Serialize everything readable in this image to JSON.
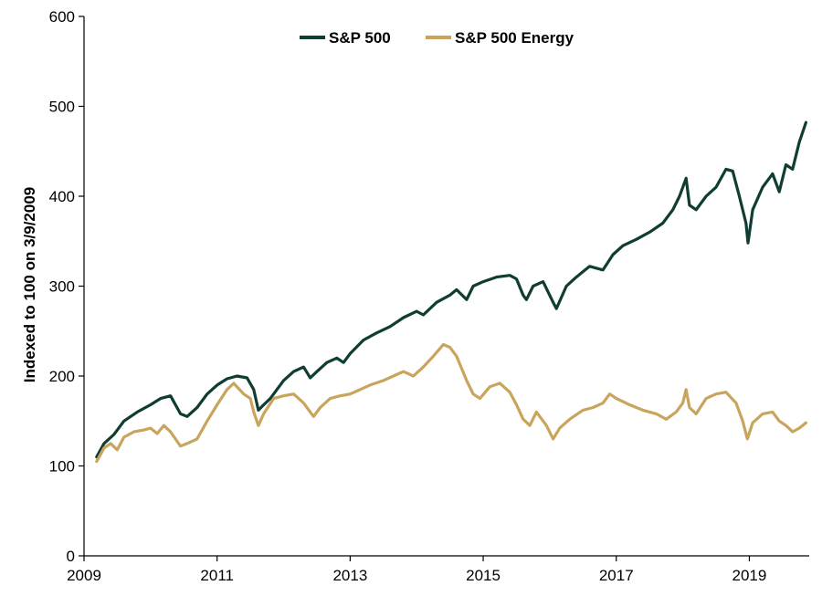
{
  "chart_data": {
    "type": "line",
    "title": "",
    "xlabel": "",
    "ylabel": "Indexed to 100 on 3/9/2009",
    "xlim": [
      2009.0,
      2019.9
    ],
    "ylim": [
      0,
      600
    ],
    "x_ticks": [
      2009,
      2011,
      2013,
      2015,
      2017,
      2019
    ],
    "x_tick_labels": [
      "2009",
      "2011",
      "2013",
      "2015",
      "2017",
      "2019"
    ],
    "y_ticks": [
      0,
      100,
      200,
      300,
      400,
      500,
      600
    ],
    "y_tick_labels": [
      "0",
      "100",
      "200",
      "300",
      "400",
      "500",
      "600"
    ],
    "grid": false,
    "legend": "top-center",
    "series": [
      {
        "name": "S&P 500",
        "color": "#0f3d33",
        "points": [
          [
            2009.19,
            110
          ],
          [
            2009.3,
            125
          ],
          [
            2009.45,
            135
          ],
          [
            2009.6,
            150
          ],
          [
            2009.8,
            160
          ],
          [
            2010.0,
            168
          ],
          [
            2010.15,
            175
          ],
          [
            2010.3,
            178
          ],
          [
            2010.45,
            158
          ],
          [
            2010.55,
            155
          ],
          [
            2010.7,
            165
          ],
          [
            2010.85,
            180
          ],
          [
            2011.0,
            190
          ],
          [
            2011.15,
            197
          ],
          [
            2011.3,
            200
          ],
          [
            2011.45,
            198
          ],
          [
            2011.55,
            185
          ],
          [
            2011.62,
            162
          ],
          [
            2011.7,
            168
          ],
          [
            2011.8,
            175
          ],
          [
            2011.9,
            185
          ],
          [
            2012.0,
            195
          ],
          [
            2012.15,
            205
          ],
          [
            2012.3,
            210
          ],
          [
            2012.4,
            198
          ],
          [
            2012.5,
            205
          ],
          [
            2012.65,
            215
          ],
          [
            2012.8,
            220
          ],
          [
            2012.9,
            215
          ],
          [
            2013.0,
            225
          ],
          [
            2013.2,
            240
          ],
          [
            2013.4,
            248
          ],
          [
            2013.6,
            255
          ],
          [
            2013.8,
            265
          ],
          [
            2014.0,
            272
          ],
          [
            2014.1,
            268
          ],
          [
            2014.3,
            282
          ],
          [
            2014.5,
            290
          ],
          [
            2014.6,
            296
          ],
          [
            2014.75,
            285
          ],
          [
            2014.85,
            300
          ],
          [
            2015.0,
            305
          ],
          [
            2015.2,
            310
          ],
          [
            2015.4,
            312
          ],
          [
            2015.5,
            308
          ],
          [
            2015.6,
            290
          ],
          [
            2015.65,
            285
          ],
          [
            2015.75,
            300
          ],
          [
            2015.9,
            305
          ],
          [
            2016.05,
            282
          ],
          [
            2016.1,
            275
          ],
          [
            2016.25,
            300
          ],
          [
            2016.4,
            310
          ],
          [
            2016.6,
            322
          ],
          [
            2016.8,
            318
          ],
          [
            2016.95,
            335
          ],
          [
            2017.1,
            345
          ],
          [
            2017.3,
            352
          ],
          [
            2017.5,
            360
          ],
          [
            2017.7,
            370
          ],
          [
            2017.85,
            385
          ],
          [
            2017.95,
            400
          ],
          [
            2018.05,
            420
          ],
          [
            2018.1,
            390
          ],
          [
            2018.2,
            385
          ],
          [
            2018.35,
            400
          ],
          [
            2018.5,
            410
          ],
          [
            2018.65,
            430
          ],
          [
            2018.75,
            428
          ],
          [
            2018.85,
            400
          ],
          [
            2018.95,
            370
          ],
          [
            2018.98,
            348
          ],
          [
            2019.05,
            385
          ],
          [
            2019.2,
            410
          ],
          [
            2019.35,
            425
          ],
          [
            2019.45,
            405
          ],
          [
            2019.55,
            435
          ],
          [
            2019.65,
            430
          ],
          [
            2019.75,
            460
          ],
          [
            2019.85,
            482
          ]
        ]
      },
      {
        "name": "S&P 500 Energy",
        "color": "#c9a45c",
        "points": [
          [
            2009.19,
            105
          ],
          [
            2009.3,
            120
          ],
          [
            2009.4,
            125
          ],
          [
            2009.5,
            118
          ],
          [
            2009.6,
            132
          ],
          [
            2009.75,
            138
          ],
          [
            2009.9,
            140
          ],
          [
            2010.0,
            142
          ],
          [
            2010.1,
            136
          ],
          [
            2010.2,
            145
          ],
          [
            2010.3,
            138
          ],
          [
            2010.45,
            122
          ],
          [
            2010.55,
            125
          ],
          [
            2010.7,
            130
          ],
          [
            2010.85,
            150
          ],
          [
            2011.0,
            168
          ],
          [
            2011.15,
            185
          ],
          [
            2011.25,
            192
          ],
          [
            2011.4,
            180
          ],
          [
            2011.5,
            175
          ],
          [
            2011.55,
            160
          ],
          [
            2011.62,
            145
          ],
          [
            2011.7,
            158
          ],
          [
            2011.85,
            175
          ],
          [
            2012.0,
            178
          ],
          [
            2012.15,
            180
          ],
          [
            2012.3,
            170
          ],
          [
            2012.45,
            155
          ],
          [
            2012.55,
            165
          ],
          [
            2012.7,
            175
          ],
          [
            2012.85,
            178
          ],
          [
            2013.0,
            180
          ],
          [
            2013.15,
            185
          ],
          [
            2013.3,
            190
          ],
          [
            2013.5,
            195
          ],
          [
            2013.65,
            200
          ],
          [
            2013.8,
            205
          ],
          [
            2013.95,
            200
          ],
          [
            2014.1,
            210
          ],
          [
            2014.25,
            222
          ],
          [
            2014.4,
            235
          ],
          [
            2014.5,
            232
          ],
          [
            2014.6,
            222
          ],
          [
            2014.75,
            195
          ],
          [
            2014.85,
            180
          ],
          [
            2014.95,
            175
          ],
          [
            2015.1,
            188
          ],
          [
            2015.25,
            192
          ],
          [
            2015.4,
            182
          ],
          [
            2015.5,
            168
          ],
          [
            2015.6,
            152
          ],
          [
            2015.7,
            145
          ],
          [
            2015.8,
            160
          ],
          [
            2015.95,
            145
          ],
          [
            2016.05,
            130
          ],
          [
            2016.15,
            142
          ],
          [
            2016.3,
            152
          ],
          [
            2016.5,
            162
          ],
          [
            2016.65,
            165
          ],
          [
            2016.8,
            170
          ],
          [
            2016.9,
            180
          ],
          [
            2017.0,
            175
          ],
          [
            2017.2,
            168
          ],
          [
            2017.4,
            162
          ],
          [
            2017.6,
            158
          ],
          [
            2017.75,
            152
          ],
          [
            2017.9,
            160
          ],
          [
            2018.0,
            170
          ],
          [
            2018.05,
            185
          ],
          [
            2018.1,
            165
          ],
          [
            2018.2,
            158
          ],
          [
            2018.35,
            175
          ],
          [
            2018.5,
            180
          ],
          [
            2018.65,
            182
          ],
          [
            2018.8,
            170
          ],
          [
            2018.9,
            150
          ],
          [
            2018.97,
            130
          ],
          [
            2019.05,
            148
          ],
          [
            2019.2,
            158
          ],
          [
            2019.35,
            160
          ],
          [
            2019.45,
            150
          ],
          [
            2019.55,
            145
          ],
          [
            2019.65,
            138
          ],
          [
            2019.75,
            142
          ],
          [
            2019.85,
            148
          ]
        ]
      }
    ]
  }
}
